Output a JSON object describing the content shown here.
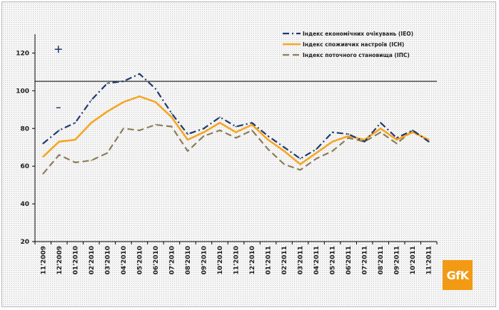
{
  "logo": "GfK",
  "chart_data": {
    "type": "line",
    "title": "",
    "xlabel": "",
    "ylabel": "",
    "ylim": [
      20,
      130
    ],
    "yticks": [
      20,
      40,
      60,
      80,
      100,
      120
    ],
    "reference_line": 105,
    "grid": false,
    "legend_position": "top-right",
    "categories": [
      "11'2009",
      "12'2009",
      "01'2010",
      "02'2010",
      "03'2010",
      "04'2010",
      "05'2010",
      "06'2010",
      "07'2010",
      "08'2010",
      "09'2010",
      "10'2010",
      "11'2010",
      "12'2010",
      "01'2011",
      "02'2011",
      "03'2011",
      "04'2011",
      "05'2011",
      "06'2011",
      "07'2011",
      "08'2011",
      "09'2011",
      "10'2011",
      "11'2011"
    ],
    "series": [
      {
        "name": "Індекс економічних очікувань (ІЕО)",
        "color": "#1f3a6e",
        "style": "dash-dot",
        "values": [
          72,
          79,
          83,
          95,
          104,
          105,
          109,
          101,
          88,
          77,
          80,
          86,
          81,
          83,
          76,
          70,
          64,
          69,
          78,
          77,
          73,
          83,
          75,
          79,
          73
        ],
        "outliers": [
          122,
          91
        ]
      },
      {
        "name": "Індекс споживчих настроїв (ІСН)",
        "color": "#f5a623",
        "style": "solid",
        "values": [
          65,
          73,
          74,
          83,
          89,
          94,
          97,
          94,
          86,
          74,
          78,
          83,
          78,
          82,
          74,
          68,
          61,
          67,
          73,
          76,
          74,
          80,
          74,
          78,
          74
        ],
        "outliers": []
      },
      {
        "name": "Індекс поточного становища (ІПС)",
        "color": "#8c7d58",
        "style": "dashed",
        "values": [
          56,
          66,
          62,
          63,
          67,
          80,
          79,
          82,
          81,
          68,
          76,
          79,
          75,
          79,
          69,
          61,
          58,
          64,
          68,
          75,
          73,
          78,
          72,
          79,
          73
        ],
        "outliers": []
      }
    ]
  }
}
